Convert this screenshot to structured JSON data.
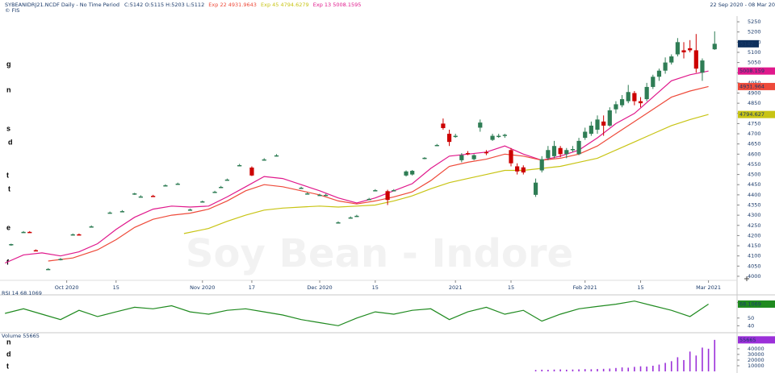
{
  "header": {
    "title": "SYBEANIDRJ21.NCDF Daily - No Time Period",
    "ohlc": "C:5142 O:5115 H:5203 L:5112",
    "ema22": "Exp 22 4931.9643",
    "ema45": "Exp 45 4794.6279",
    "ema13": "Exp 13 5008.1595",
    "source": "© FIS",
    "range": "22 Sep 2020 - 08 Mar 20"
  },
  "side_fragments": [
    "g",
    "n",
    "s",
    "d",
    "t",
    "t",
    "e",
    "f",
    "n",
    "d",
    "t"
  ],
  "chart_data": {
    "type": "candlestick",
    "watermark": "Soy Bean - Indore",
    "up_color": "#2f7d55",
    "down_color": "#cc0000",
    "xlim": [
      -2.5,
      115.5
    ],
    "xticks": [
      {
        "value": 7,
        "label": "Oct 2020"
      },
      {
        "value": 15,
        "label": "15"
      },
      {
        "value": 29,
        "label": "Nov 2020"
      },
      {
        "value": 37,
        "label": "17"
      },
      {
        "value": 48,
        "label": "Dec 2020"
      },
      {
        "value": 57,
        "label": "15"
      },
      {
        "value": 70,
        "label": "2021"
      },
      {
        "value": 79,
        "label": "15"
      },
      {
        "value": 91,
        "label": "Feb 2021"
      },
      {
        "value": 100,
        "label": "15"
      },
      {
        "value": 111,
        "label": "Mar 2021"
      }
    ],
    "ylim": [
      3980,
      5270
    ],
    "yticks": [
      4000,
      4050,
      4100,
      4150,
      4200,
      4250,
      4300,
      4350,
      4400,
      4450,
      4500,
      4550,
      4600,
      4650,
      4700,
      4750,
      4800,
      4850,
      4900,
      4950,
      5000,
      5050,
      5100,
      5150,
      5200,
      5250
    ],
    "price_tag": 5142,
    "price_tag_color": "#0d2f5c",
    "x": [
      -2,
      0,
      1,
      2,
      4,
      6,
      8,
      9,
      11,
      14,
      16,
      18,
      19,
      21,
      23,
      25,
      27,
      29,
      31,
      32,
      33,
      35,
      37,
      39,
      41,
      45,
      46,
      48,
      49,
      51,
      53,
      54,
      56,
      57,
      59,
      60,
      62,
      63,
      65,
      67,
      68,
      69,
      70,
      71,
      72,
      73,
      74,
      75,
      76,
      77,
      78,
      79,
      80,
      81,
      83,
      84,
      85,
      86,
      87,
      88,
      89,
      90,
      91,
      92,
      93,
      94,
      95,
      96,
      97,
      98,
      99,
      100,
      101,
      102,
      103,
      104,
      105,
      106,
      107,
      108,
      109,
      110,
      112
    ],
    "open": [
      4155,
      4218,
      4218,
      4128,
      4036,
      4083,
      4205,
      4206,
      4245,
      4313,
      4320,
      4405,
      4392,
      4395,
      4447,
      4455,
      4328,
      4368,
      4415,
      4439,
      4475,
      4546,
      4534,
      4574,
      4594,
      4435,
      4407,
      4400,
      4400,
      4265,
      4289,
      4297,
      4380,
      4423,
      4418,
      4423,
      4495,
      4500,
      4580,
      4645,
      4750,
      4700,
      4690,
      4570,
      4605,
      4575,
      4730,
      4610,
      4670,
      4690,
      4690,
      4620,
      4540,
      4535,
      4400,
      4520,
      4580,
      4590,
      4630,
      4600,
      4620,
      4600,
      4680,
      4700,
      4720,
      4760,
      4740,
      4820,
      4840,
      4860,
      4900,
      4860,
      4870,
      4930,
      4980,
      5010,
      5050,
      5090,
      5110,
      5120,
      5110,
      5000,
      5115
    ],
    "high": [
      4160,
      4222,
      4222,
      4132,
      4040,
      4090,
      4210,
      4210,
      4250,
      4318,
      4325,
      4410,
      4398,
      4400,
      4452,
      4460,
      4332,
      4372,
      4420,
      4444,
      4480,
      4552,
      4540,
      4580,
      4600,
      4440,
      4412,
      4405,
      4405,
      4270,
      4294,
      4302,
      4385,
      4428,
      4425,
      4428,
      4520,
      4522,
      4585,
      4650,
      4775,
      4720,
      4700,
      4605,
      4615,
      4600,
      4770,
      4620,
      4700,
      4700,
      4700,
      4630,
      4555,
      4545,
      4480,
      4590,
      4640,
      4665,
      4640,
      4630,
      4640,
      4680,
      4730,
      4760,
      4790,
      4790,
      4830,
      4860,
      4890,
      4940,
      4910,
      4880,
      4950,
      4990,
      5020,
      5075,
      5090,
      5170,
      5150,
      5160,
      5190,
      5070,
      5203
    ],
    "low": [
      4150,
      4214,
      4214,
      4124,
      4032,
      4078,
      4200,
      4202,
      4240,
      4308,
      4315,
      4400,
      4388,
      4390,
      4442,
      4450,
      4322,
      4362,
      4410,
      4434,
      4470,
      4540,
      4492,
      4568,
      4588,
      4430,
      4402,
      4395,
      4395,
      4260,
      4284,
      4292,
      4375,
      4418,
      4350,
      4418,
      4490,
      4495,
      4575,
      4640,
      4720,
      4640,
      4680,
      4560,
      4595,
      4570,
      4710,
      4595,
      4665,
      4680,
      4680,
      4540,
      4500,
      4500,
      4390,
      4510,
      4570,
      4580,
      4585,
      4580,
      4610,
      4595,
      4670,
      4690,
      4700,
      4690,
      4735,
      4800,
      4830,
      4850,
      4840,
      4830,
      4860,
      4920,
      4960,
      4995,
      5040,
      5080,
      5070,
      5100,
      5000,
      4960,
      5112
    ],
    "close": [
      4158,
      4218,
      4215,
      4127,
      4036,
      4085,
      4206,
      4205,
      4245,
      4313,
      4320,
      4407,
      4392,
      4393,
      4447,
      4455,
      4328,
      4368,
      4415,
      4439,
      4475,
      4546,
      4495,
      4574,
      4594,
      4435,
      4407,
      4400,
      4400,
      4265,
      4289,
      4297,
      4380,
      4423,
      4375,
      4423,
      4515,
      4518,
      4582,
      4645,
      4728,
      4660,
      4690,
      4595,
      4600,
      4595,
      4755,
      4605,
      4690,
      4690,
      4695,
      4555,
      4515,
      4510,
      4460,
      4575,
      4620,
      4640,
      4600,
      4620,
      4625,
      4665,
      4710,
      4740,
      4770,
      4740,
      4815,
      4845,
      4870,
      4905,
      4860,
      4850,
      4930,
      4980,
      5010,
      5050,
      5080,
      5150,
      5100,
      5110,
      5020,
      5060,
      5142
    ],
    "series": [
      {
        "color": "#e0198c",
        "axis_tag": {
          "value": 5008.1595,
          "label": "5008.159"
        },
        "x": [
          -3,
          0,
          3,
          6,
          9,
          12,
          15,
          18,
          21,
          24,
          27,
          30,
          33,
          36,
          39,
          42,
          45,
          48,
          51,
          54,
          57,
          60,
          63,
          66,
          69,
          72,
          75,
          78,
          81,
          84,
          87,
          90,
          93,
          96,
          99,
          102,
          105,
          108,
          111
        ],
        "values": [
          4065,
          4105,
          4115,
          4100,
          4120,
          4160,
          4230,
          4290,
          4330,
          4345,
          4340,
          4345,
          4390,
          4440,
          4490,
          4480,
          4450,
          4420,
          4385,
          4360,
          4385,
          4420,
          4455,
          4530,
          4590,
          4600,
          4610,
          4640,
          4600,
          4570,
          4590,
          4620,
          4680,
          4750,
          4800,
          4880,
          4960,
          4990,
          5008.1595
        ]
      },
      {
        "color": "#ee4a3a",
        "axis_tag": {
          "value": 4931.9643,
          "label": "4931.964"
        },
        "x": [
          4,
          8,
          12,
          15,
          18,
          21,
          24,
          27,
          30,
          33,
          36,
          39,
          42,
          45,
          48,
          51,
          54,
          57,
          60,
          63,
          66,
          69,
          72,
          75,
          78,
          81,
          84,
          87,
          90,
          93,
          96,
          99,
          102,
          105,
          108,
          111
        ],
        "values": [
          4075,
          4090,
          4130,
          4180,
          4240,
          4280,
          4300,
          4310,
          4330,
          4370,
          4420,
          4450,
          4440,
          4420,
          4400,
          4370,
          4355,
          4370,
          4390,
          4415,
          4470,
          4540,
          4560,
          4575,
          4600,
          4590,
          4570,
          4580,
          4600,
          4640,
          4700,
          4760,
          4820,
          4880,
          4910,
          4931.9643
        ]
      },
      {
        "color": "#c8c414",
        "axis_tag": {
          "value": 4794.6279,
          "label": "4794.627"
        },
        "x": [
          26,
          30,
          33,
          36,
          39,
          42,
          45,
          48,
          51,
          54,
          57,
          60,
          63,
          66,
          69,
          72,
          75,
          78,
          81,
          84,
          87,
          90,
          93,
          96,
          99,
          102,
          105,
          108,
          111
        ],
        "values": [
          4210,
          4235,
          4270,
          4300,
          4325,
          4335,
          4340,
          4345,
          4340,
          4345,
          4350,
          4370,
          4395,
          4430,
          4460,
          4480,
          4500,
          4520,
          4520,
          4530,
          4540,
          4560,
          4580,
          4620,
          4660,
          4700,
          4740,
          4770,
          4794.6279
        ]
      }
    ],
    "rsi": {
      "label": "RSI 14  68.1069",
      "color": "#1f8a1f",
      "ylim": [
        32,
        78
      ],
      "yticks": [
        70,
        50,
        40
      ],
      "tag": {
        "value": 68.1069,
        "label": "68.1069"
      },
      "x": [
        -3,
        0,
        3,
        6,
        9,
        12,
        15,
        18,
        21,
        24,
        27,
        30,
        33,
        36,
        39,
        42,
        45,
        48,
        51,
        54,
        57,
        60,
        63,
        66,
        69,
        72,
        75,
        78,
        81,
        84,
        87,
        90,
        93,
        96,
        99,
        102,
        105,
        108,
        111
      ],
      "values": [
        56,
        62,
        55,
        48,
        60,
        52,
        58,
        64,
        62,
        66,
        58,
        55,
        60,
        62,
        58,
        54,
        48,
        44,
        40,
        50,
        58,
        55,
        60,
        62,
        48,
        58,
        64,
        55,
        60,
        46,
        55,
        62,
        65,
        68,
        72,
        66,
        60,
        52,
        68.1069
      ]
    },
    "volume": {
      "label": "Volume  55665",
      "color": "#9b30d9",
      "ylim": [
        0,
        64000
      ],
      "yticks": [
        40000,
        30000,
        20000,
        10000
      ],
      "tag": {
        "value": 55665,
        "label": "55665"
      },
      "x": [
        83,
        84,
        85,
        86,
        87,
        88,
        89,
        90,
        91,
        92,
        93,
        94,
        95,
        96,
        97,
        98,
        99,
        100,
        101,
        102,
        103,
        104,
        105,
        106,
        107,
        108,
        109,
        110,
        111,
        112
      ],
      "values": [
        2500,
        3000,
        2800,
        3200,
        3500,
        3000,
        3300,
        3600,
        4000,
        3800,
        4200,
        4500,
        5000,
        6000,
        7000,
        6500,
        8000,
        9000,
        8500,
        10000,
        12000,
        15000,
        18000,
        25000,
        20000,
        35000,
        28000,
        42000,
        40000,
        55665
      ]
    }
  }
}
